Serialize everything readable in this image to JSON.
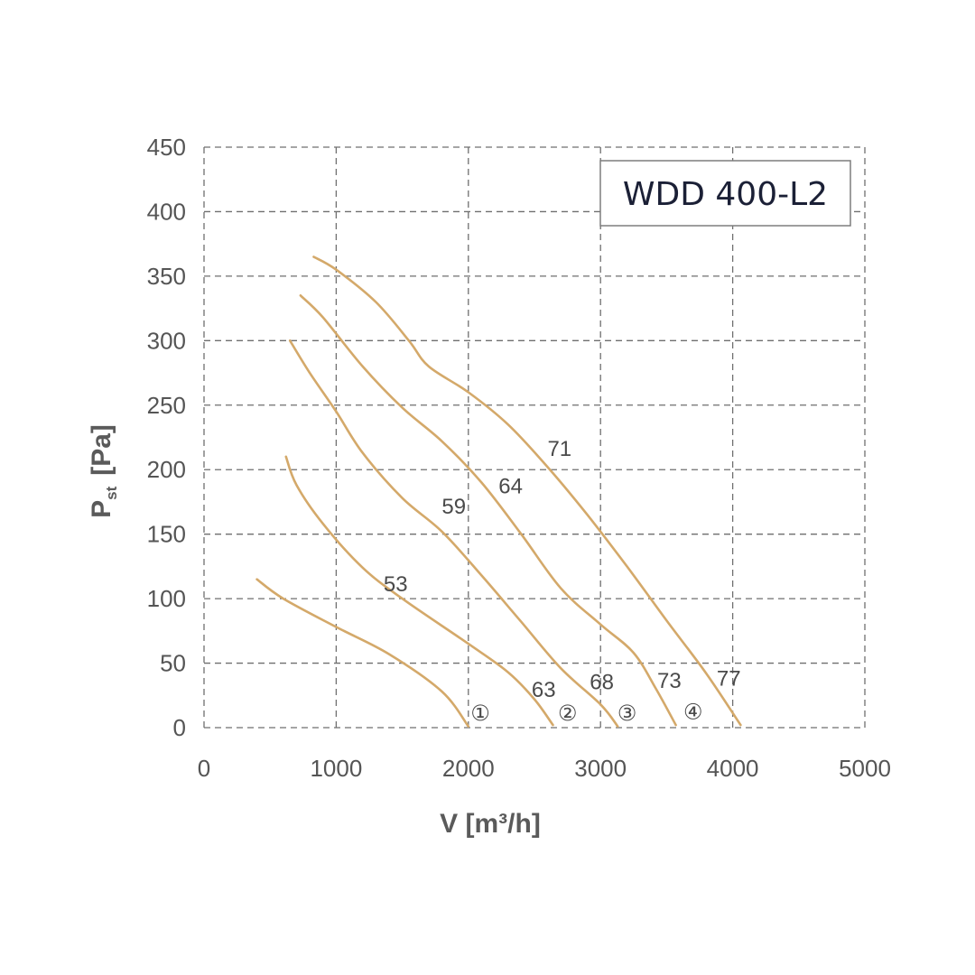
{
  "chart_data": {
    "type": "line",
    "title": "WDD 400-L2",
    "xlabel": "V [m³/h]",
    "ylabel": "Pst [Pa]",
    "ylabel_main": "P",
    "ylabel_sub": "st",
    "ylabel_unit": "[Pa]",
    "xlim": [
      0,
      5000
    ],
    "ylim": [
      0,
      450
    ],
    "xticks": [
      0,
      1000,
      2000,
      3000,
      4000,
      5000
    ],
    "yticks": [
      0,
      50,
      100,
      150,
      200,
      250,
      300,
      350,
      400,
      450
    ],
    "grid": true,
    "curve_color": "#d4a96a",
    "series": [
      {
        "name": "①",
        "points": [
          [
            400,
            115
          ],
          [
            600,
            100
          ],
          [
            1000,
            78
          ],
          [
            1400,
            57
          ],
          [
            1800,
            28
          ],
          [
            2000,
            1
          ]
        ]
      },
      {
        "name": "②",
        "points": [
          [
            620,
            210
          ],
          [
            700,
            188
          ],
          [
            900,
            158
          ],
          [
            1200,
            124
          ],
          [
            1500,
            100
          ],
          [
            2000,
            65
          ],
          [
            2300,
            43
          ],
          [
            2500,
            22
          ],
          [
            2640,
            2
          ]
        ]
      },
      {
        "name": "③",
        "points": [
          [
            650,
            300
          ],
          [
            800,
            275
          ],
          [
            1000,
            245
          ],
          [
            1200,
            213
          ],
          [
            1500,
            178
          ],
          [
            1800,
            152
          ],
          [
            2100,
            118
          ],
          [
            2400,
            82
          ],
          [
            2700,
            46
          ],
          [
            3000,
            18
          ],
          [
            3130,
            1
          ]
        ]
      },
      {
        "name": "④",
        "points": [
          [
            730,
            335
          ],
          [
            900,
            318
          ],
          [
            1200,
            280
          ],
          [
            1500,
            248
          ],
          [
            1800,
            222
          ],
          [
            2100,
            190
          ],
          [
            2400,
            150
          ],
          [
            2700,
            108
          ],
          [
            3000,
            80
          ],
          [
            3250,
            58
          ],
          [
            3420,
            30
          ],
          [
            3570,
            2
          ]
        ]
      },
      {
        "name": "",
        "points": [
          [
            830,
            365
          ],
          [
            1000,
            355
          ],
          [
            1300,
            330
          ],
          [
            1550,
            300
          ],
          [
            1700,
            280
          ],
          [
            2000,
            260
          ],
          [
            2300,
            235
          ],
          [
            2600,
            202
          ],
          [
            2900,
            165
          ],
          [
            3200,
            125
          ],
          [
            3500,
            83
          ],
          [
            3800,
            42
          ],
          [
            4060,
            2
          ]
        ]
      }
    ],
    "annotations": [
      {
        "text": "53",
        "x": 1450,
        "y": 112
      },
      {
        "text": "59",
        "x": 1890,
        "y": 172
      },
      {
        "text": "64",
        "x": 2320,
        "y": 188
      },
      {
        "text": "71",
        "x": 2690,
        "y": 217
      },
      {
        "text": "63",
        "x": 2570,
        "y": 30
      },
      {
        "text": "68",
        "x": 3010,
        "y": 36
      },
      {
        "text": "73",
        "x": 3520,
        "y": 37
      },
      {
        "text": "77",
        "x": 3970,
        "y": 39
      },
      {
        "text": "①",
        "x": 2090,
        "y": 12
      },
      {
        "text": "②",
        "x": 2750,
        "y": 12
      },
      {
        "text": "③",
        "x": 3200,
        "y": 12
      },
      {
        "text": "④",
        "x": 3700,
        "y": 13
      }
    ]
  }
}
